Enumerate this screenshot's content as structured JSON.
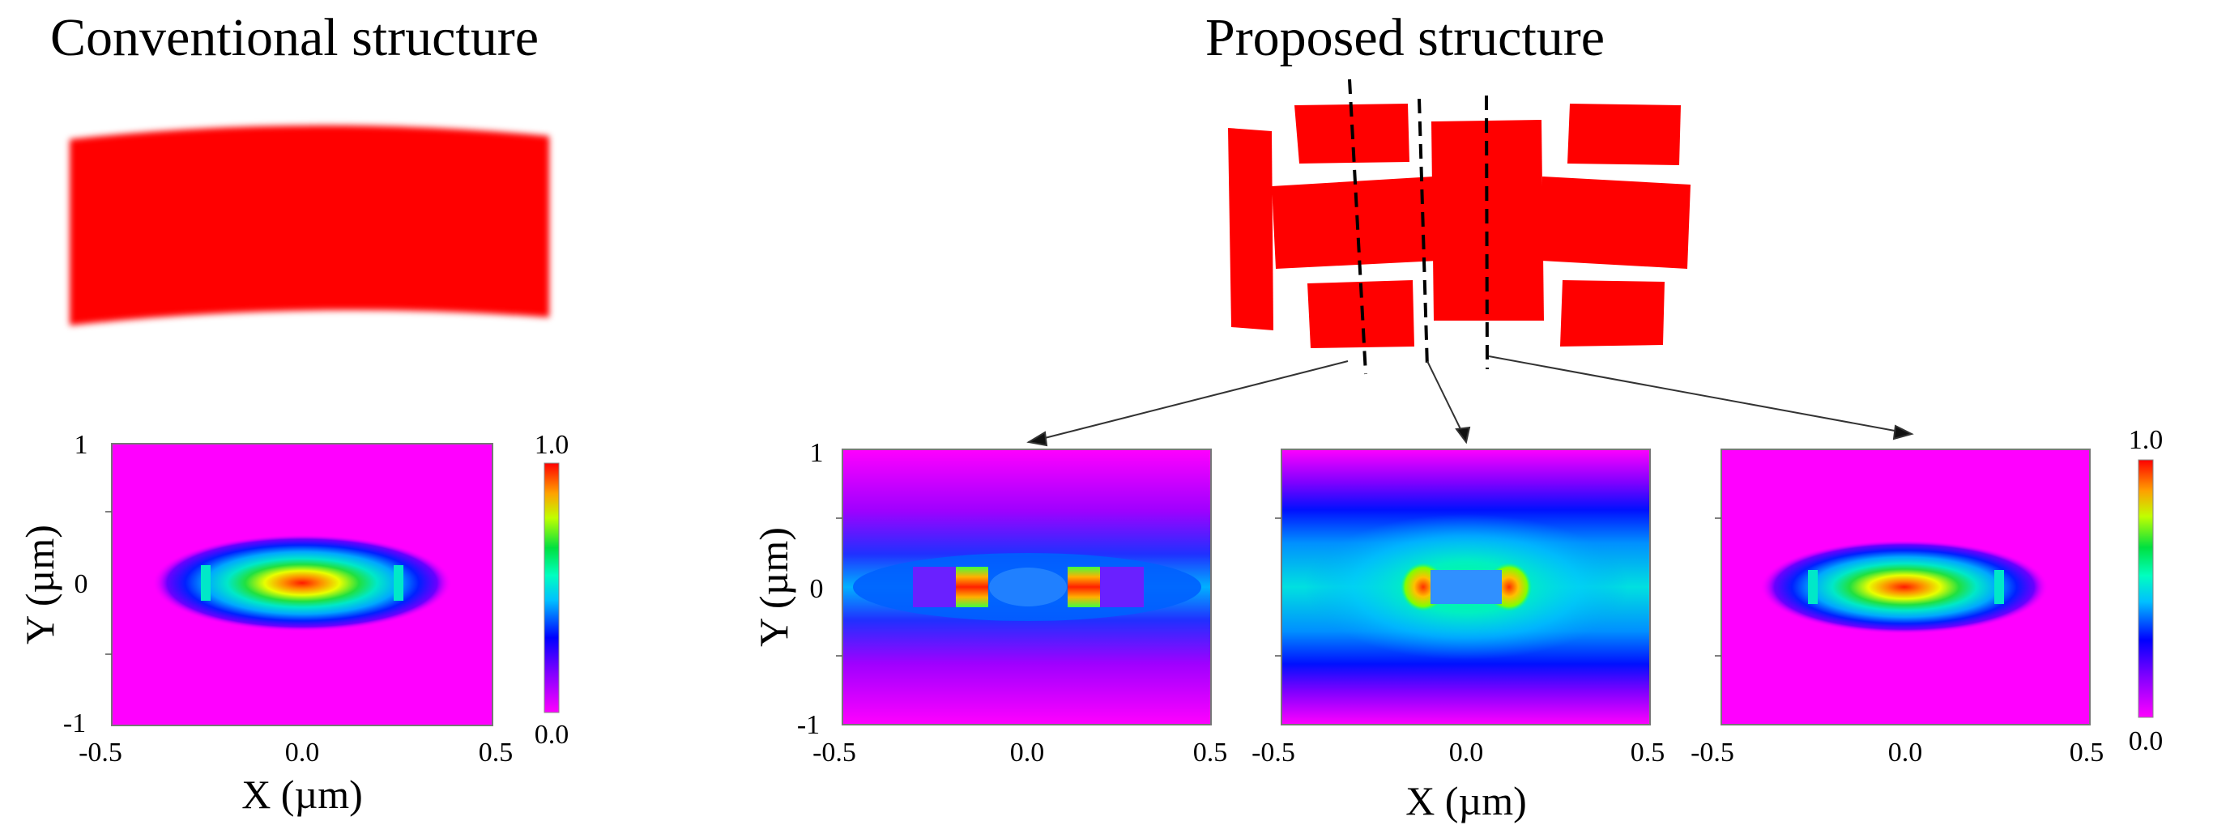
{
  "titles": {
    "conventional": "Conventional structure",
    "proposed": "Proposed structure"
  },
  "axes": {
    "x_label": "X (µm)",
    "y_label": "Y (µm)",
    "x_ticks": [
      "-0.5",
      "0.0",
      "0.5"
    ],
    "y_ticks": [
      "1",
      "0",
      "-1"
    ],
    "x_range": [
      -0.5,
      0.5
    ],
    "y_range": [
      -1,
      1
    ]
  },
  "colorbar": {
    "max_label": "1.0",
    "min_label": "0.0",
    "range": [
      0.0,
      1.0
    ]
  },
  "colors": {
    "structure": "#ff0000",
    "background": "#ff00ff"
  },
  "mode_plots": [
    {
      "name": "conventional",
      "pattern": "central-lobe"
    },
    {
      "name": "proposed-cut-left",
      "pattern": "slot-hotspots"
    },
    {
      "name": "proposed-cut-center",
      "pattern": "slot-edge"
    },
    {
      "name": "proposed-cut-right",
      "pattern": "central-lobe"
    }
  ]
}
